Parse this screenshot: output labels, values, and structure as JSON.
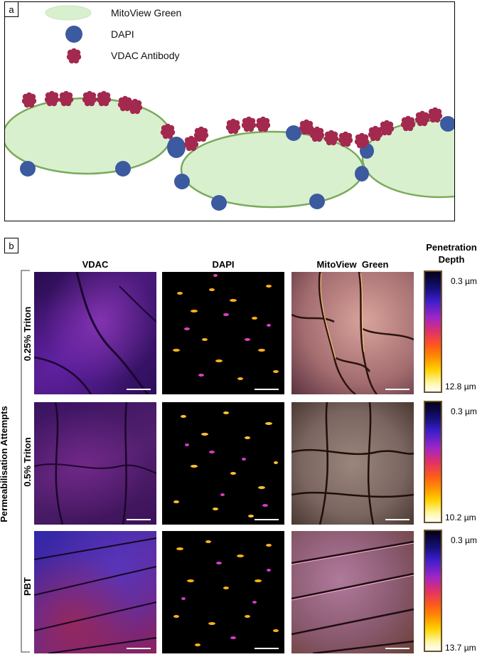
{
  "panel_a": {
    "letter": "a",
    "legend": [
      {
        "label": "MitoView Green",
        "icon": "mitochondria-ellipse-icon"
      },
      {
        "label": "DAPI",
        "icon": "nucleus-icon"
      },
      {
        "label": "VDAC Antibody",
        "icon": "antibody-cluster-icon"
      }
    ]
  },
  "panel_b": {
    "letter": "b",
    "columns": [
      "VDAC",
      "DAPI",
      "MitoView  Green"
    ],
    "colorbar_title": "Penetration Depth",
    "y_axis_label": "Permeabilisation Attempts",
    "rows": [
      {
        "label": "0.25% Triton",
        "depth_top": "0.3 µm",
        "depth_bottom": "12.8 µm"
      },
      {
        "label": "0.5% Triton",
        "depth_top": "0.3 µm",
        "depth_bottom": "10.2 µm"
      },
      {
        "label": "PBT",
        "depth_top": "0.3 µm",
        "depth_bottom": "13.7 µm"
      }
    ]
  },
  "colors": {
    "mitochondria_fill": "#d9f0cf",
    "mitochondria_stroke": "#7aaa5c",
    "nucleus": "#3c5aa0",
    "antibody": "#a3294f",
    "colorbar_border": "#6b5228"
  }
}
